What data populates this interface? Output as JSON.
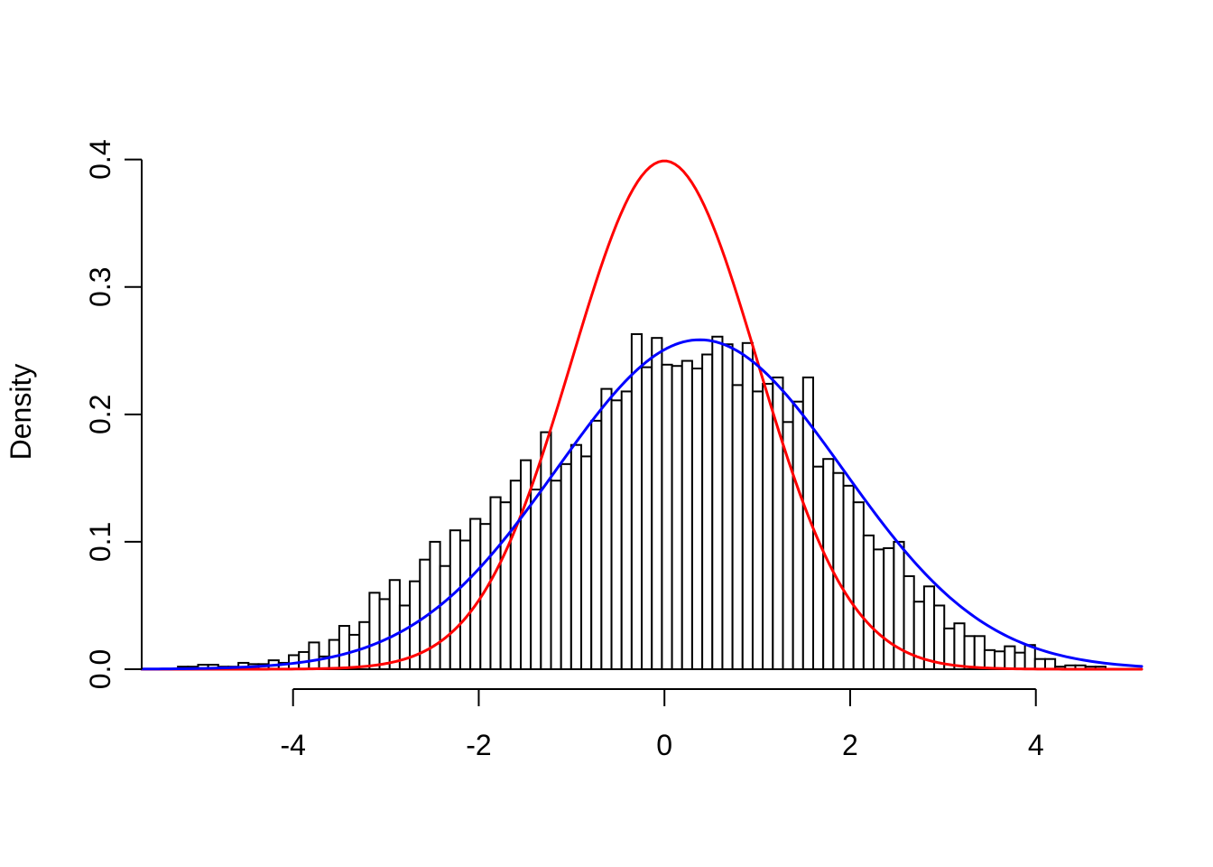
{
  "chart_data": {
    "type": "bar",
    "subtype": "density-histogram-with-curves",
    "title": "",
    "xlabel": "",
    "ylabel": "Density",
    "xlim": [
      -5.63,
      5.14
    ],
    "ylim": [
      0,
      0.404
    ],
    "grid": false,
    "legend_position": "none",
    "background": "#FFFFFF",
    "x_ticks": {
      "values": [
        -4,
        -2,
        0,
        2,
        4
      ],
      "labels": [
        "-4",
        "-2",
        "0",
        "2",
        "4"
      ]
    },
    "y_ticks": {
      "values": [
        0,
        0.1,
        0.2,
        0.3,
        0.4
      ],
      "labels": [
        "0.0",
        "0.1",
        "0.2",
        "0.3",
        "0.4"
      ]
    },
    "histogram": {
      "bin_start": -5.24,
      "bin_width": 0.1086,
      "bar_fill": "#FFFFFF",
      "bar_stroke": "#000000",
      "densities": [
        0.002,
        0.002,
        0.0035,
        0.0035,
        0.002,
        0.002,
        0.005,
        0.004,
        0.004,
        0.007,
        0.005,
        0.011,
        0.0135,
        0.021,
        0.01,
        0.023,
        0.034,
        0.027,
        0.037,
        0.06,
        0.055,
        0.07,
        0.05,
        0.069,
        0.086,
        0.1,
        0.081,
        0.109,
        0.101,
        0.118,
        0.114,
        0.135,
        0.131,
        0.148,
        0.164,
        0.141,
        0.186,
        0.148,
        0.161,
        0.176,
        0.167,
        0.195,
        0.22,
        0.211,
        0.218,
        0.263,
        0.237,
        0.26,
        0.239,
        0.238,
        0.242,
        0.236,
        0.247,
        0.261,
        0.255,
        0.223,
        0.256,
        0.218,
        0.224,
        0.229,
        0.194,
        0.21,
        0.229,
        0.159,
        0.165,
        0.154,
        0.144,
        0.131,
        0.105,
        0.094,
        0.095,
        0.1,
        0.073,
        0.053,
        0.065,
        0.05,
        0.032,
        0.036,
        0.026,
        0.026,
        0.015,
        0.014,
        0.018,
        0.013,
        0.019,
        0.008,
        0.008,
        0.002,
        0.003,
        0.003,
        0.002,
        0.002
      ]
    },
    "curves": [
      {
        "name": "standard-normal-curve",
        "color": "#FF0000",
        "mean": 0,
        "sd": 1,
        "peak": 0.399
      },
      {
        "name": "density-estimate-curve",
        "color": "#0000FF",
        "mean": 0.38,
        "sd": 1.543,
        "peak": 0.2585
      }
    ]
  }
}
